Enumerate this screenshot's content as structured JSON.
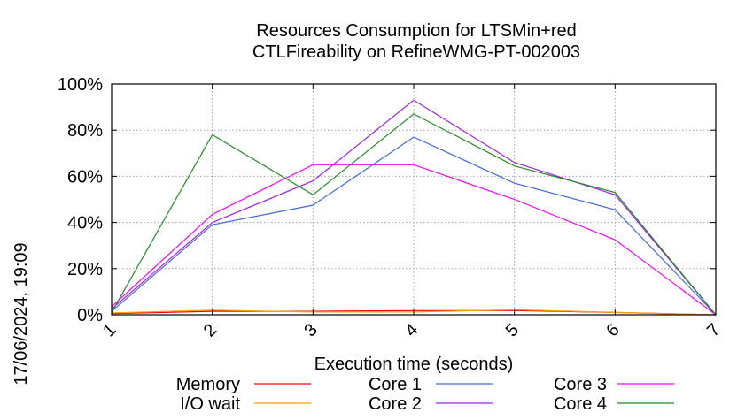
{
  "chart_data": {
    "type": "line",
    "title_lines": [
      "Resources Consumption for LTSMin+red",
      "CTLFireability on RefineWMG-PT-002003"
    ],
    "xlabel": "Execution time (seconds)",
    "ylabel": "",
    "x": [
      1,
      2,
      3,
      4,
      5,
      6,
      7
    ],
    "xlim": [
      1,
      7
    ],
    "ylim": [
      0,
      100
    ],
    "yticks": [
      0,
      20,
      40,
      60,
      80,
      100
    ],
    "ytick_labels": [
      "0%",
      "20%",
      "40%",
      "60%",
      "80%",
      "100%"
    ],
    "xtick_labels": [
      "1",
      "2",
      "3",
      "4",
      "5",
      "6",
      "7"
    ],
    "grid": true,
    "legend_position": "bottom",
    "side_text": "17/06/2024, 19:09",
    "series": [
      {
        "name": "Memory",
        "color": "#ff0000",
        "values": [
          0.5,
          1.5,
          1.5,
          1.8,
          1.8,
          1.0,
          0
        ]
      },
      {
        "name": "I/O wait",
        "color": "#ffa000",
        "values": [
          0.8,
          2.0,
          1.2,
          1.2,
          2.2,
          1.0,
          0
        ]
      },
      {
        "name": "Core 1",
        "color": "#4169e1",
        "values": [
          1.5,
          39,
          47.5,
          77,
          57,
          45.5,
          0
        ]
      },
      {
        "name": "Core 2",
        "color": "#a020f0",
        "values": [
          2.5,
          40,
          58,
          93,
          66,
          52,
          0
        ]
      },
      {
        "name": "Core 3",
        "color": "#ff00ff",
        "values": [
          3.5,
          43.5,
          65,
          65,
          50,
          32.5,
          0
        ]
      },
      {
        "name": "Core 4",
        "color": "#228b22",
        "values": [
          1.0,
          78,
          52,
          87,
          64.5,
          53,
          0
        ]
      }
    ]
  }
}
